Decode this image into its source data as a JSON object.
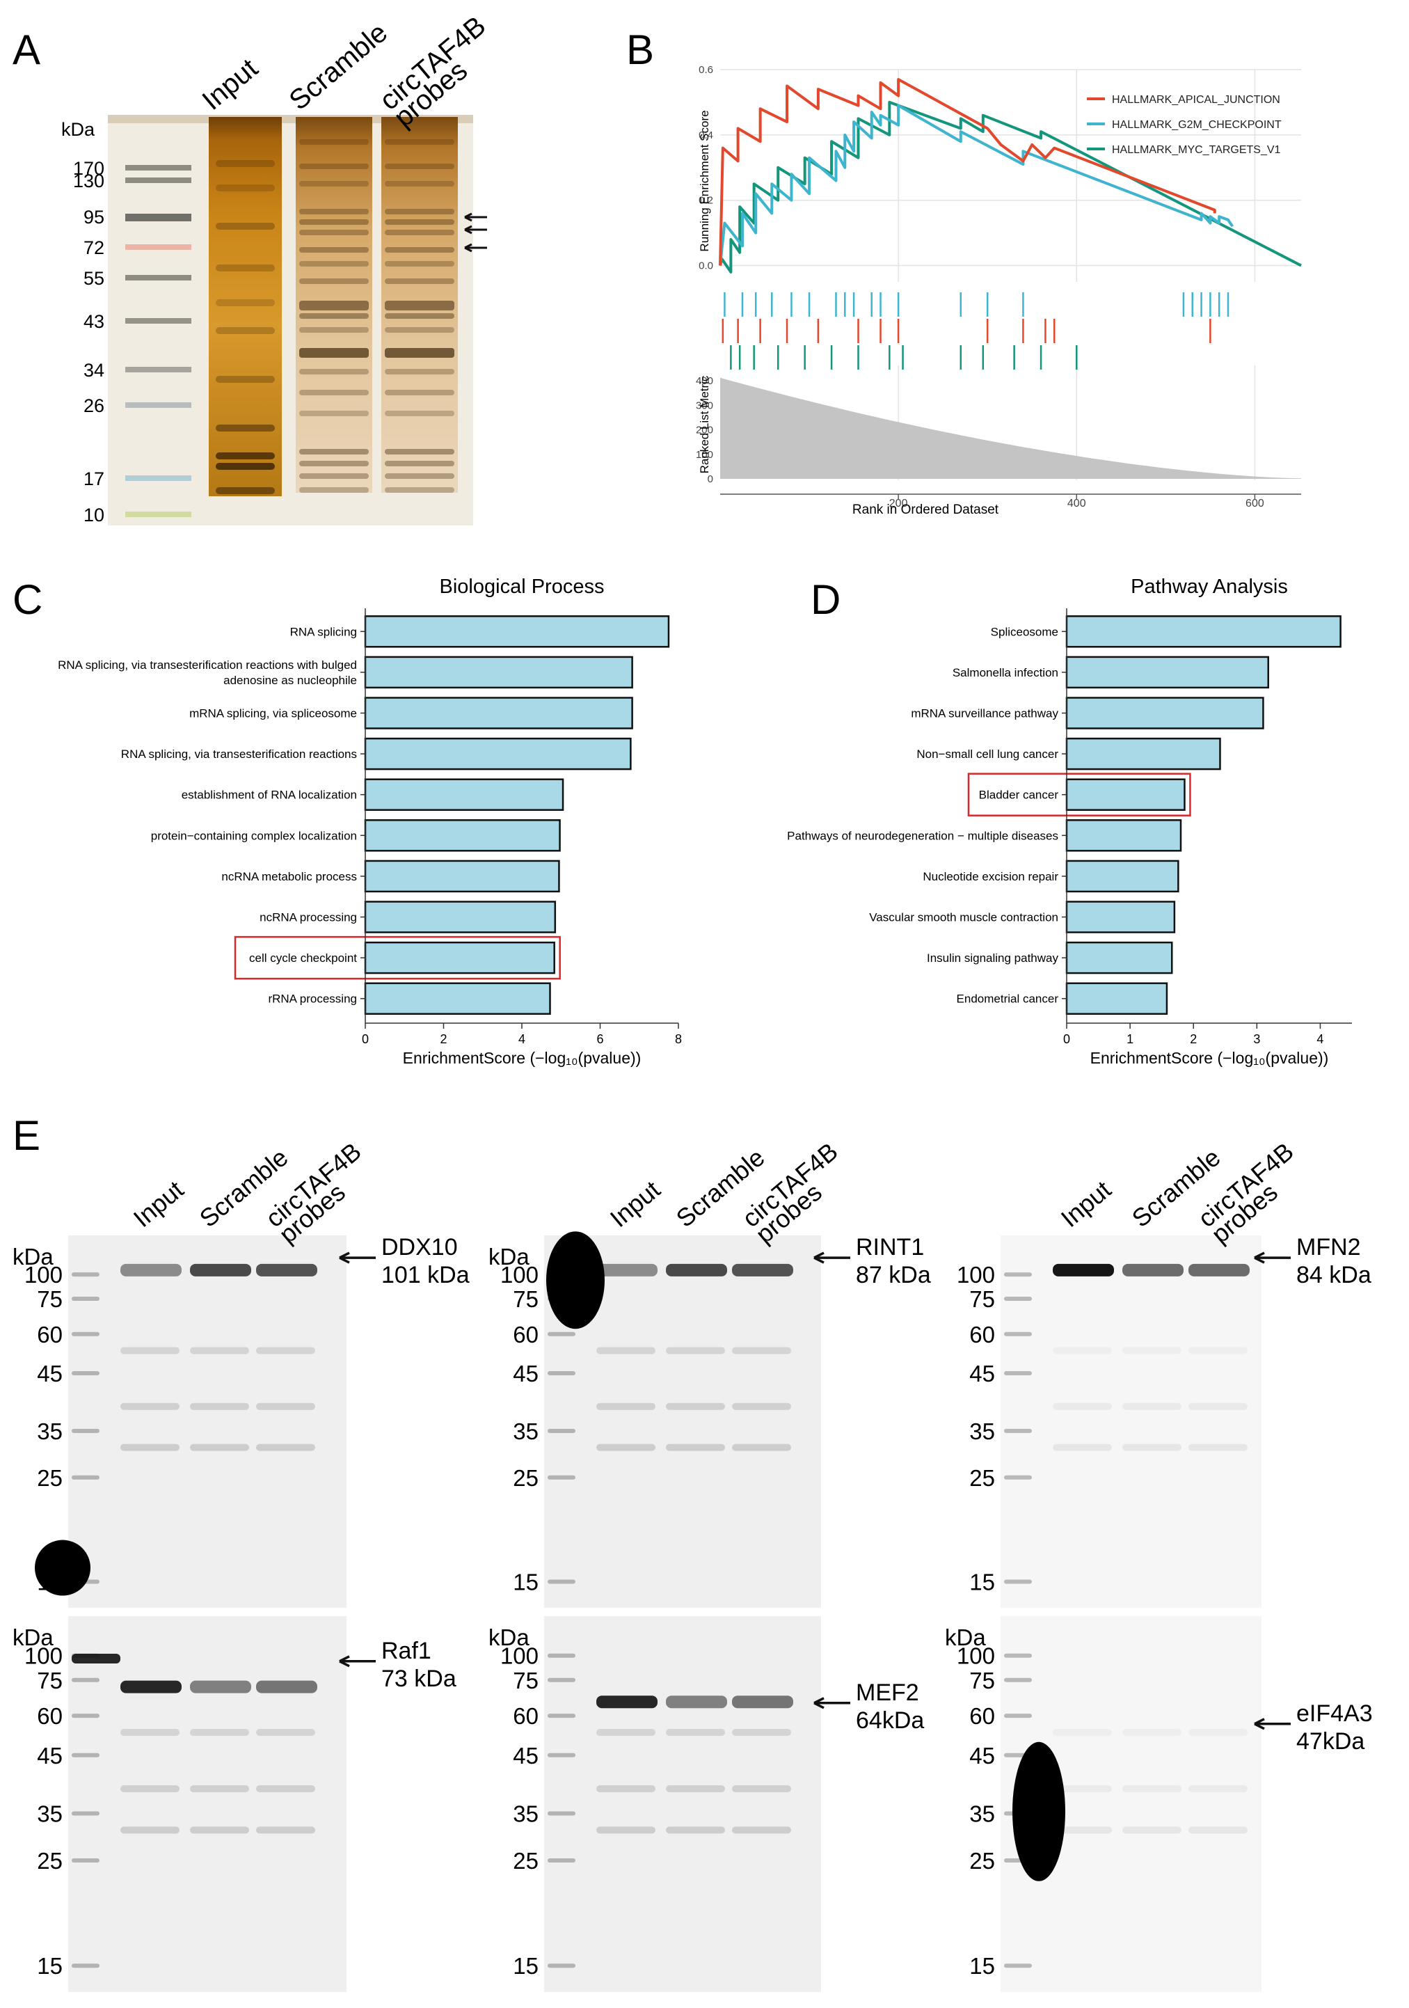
{
  "panels": {
    "A": {
      "letter": "A",
      "unit": "kDa",
      "lanes": [
        "Input",
        "Scramble",
        "circTAF4B\nprobes"
      ],
      "markers": [
        "170",
        "130",
        "95",
        "72",
        "55",
        "43",
        "34",
        "26",
        "17",
        "10"
      ]
    },
    "E": {
      "letter": "E",
      "lanes": [
        "Input",
        "Scramble",
        "circTAF4B\nprobes"
      ],
      "blots": [
        {
          "unit": "kDa",
          "markers": [
            "100",
            "75",
            "60",
            "45",
            "35",
            "25",
            "15"
          ],
          "target": "DDX10",
          "size": "101 kDa"
        },
        {
          "unit": "kDa",
          "markers": [
            "100",
            "75",
            "60",
            "45",
            "35",
            "25",
            "15"
          ],
          "target": "RINT1",
          "size": "87 kDa"
        },
        {
          "unit": "",
          "markers": [
            "100",
            "75",
            "60",
            "45",
            "35",
            "25",
            "15"
          ],
          "target": "MFN2",
          "size": "84 kDa"
        },
        {
          "unit": "kDa",
          "markers": [
            "100",
            "75",
            "60",
            "45",
            "35",
            "25",
            "15"
          ],
          "target": "Raf1",
          "size": "73 kDa"
        },
        {
          "unit": "kDa",
          "markers": [
            "100",
            "75",
            "60",
            "45",
            "35",
            "25",
            "15"
          ],
          "target": "MEF2",
          "size": "64kDa"
        },
        {
          "unit": "kDa",
          "markers": [
            "100",
            "75",
            "60",
            "45",
            "35",
            "25",
            "15"
          ],
          "target": "eIF4A3",
          "size": "47kDa"
        }
      ]
    }
  },
  "colors": {
    "apical": "#e2492c",
    "g2m": "#3fb4cf",
    "myc": "#14967c",
    "bar_fill": "#a9d8e6",
    "highlight": "#d8282b",
    "metric_fill": "#c4c4c4"
  },
  "chart_data": [
    {
      "panel": "B",
      "letter": "B",
      "type": "line",
      "title": "",
      "xlabel": "Rank in Ordered Dataset",
      "ylabel": "Running Enrichment Score",
      "ylabel2": "Ranked List Metric",
      "xlim": [
        0,
        652
      ],
      "ylim": [
        -0.05,
        0.6
      ],
      "x_ticks": [
        200,
        400,
        600
      ],
      "y_ticks": [
        0.0,
        0.2,
        0.4,
        0.6
      ],
      "metric_ticks": [
        0,
        100,
        200,
        300,
        400
      ],
      "metric_ylim": [
        0,
        420
      ],
      "legend_position": "top-right",
      "series": [
        {
          "name": "HALLMARK_APICAL_JUNCTION",
          "color": "apical",
          "x": [
            0,
            3,
            20,
            20,
            45,
            45,
            75,
            75,
            110,
            110,
            155,
            155,
            180,
            180,
            200,
            200,
            300,
            315,
            340,
            350,
            365,
            375,
            555,
            555
          ],
          "y": [
            0.0,
            0.36,
            0.32,
            0.42,
            0.38,
            0.48,
            0.44,
            0.55,
            0.48,
            0.54,
            0.49,
            0.52,
            0.48,
            0.56,
            0.52,
            0.57,
            0.42,
            0.37,
            0.32,
            0.37,
            0.33,
            0.36,
            0.17,
            0.16
          ],
          "hits": [
            3,
            20,
            45,
            75,
            110,
            155,
            180,
            200,
            300,
            340,
            365,
            375,
            550
          ]
        },
        {
          "name": "HALLMARK_G2M_CHECKPOINT",
          "color": "g2m",
          "x": [
            0,
            5,
            25,
            25,
            40,
            40,
            58,
            58,
            80,
            80,
            100,
            100,
            130,
            130,
            140,
            140,
            150,
            150,
            170,
            170,
            180,
            180,
            200,
            200,
            270,
            270,
            340,
            340,
            540,
            540,
            550,
            550,
            560,
            560,
            570,
            575
          ],
          "y": [
            0.0,
            0.13,
            0.06,
            0.16,
            0.1,
            0.22,
            0.16,
            0.25,
            0.2,
            0.28,
            0.22,
            0.33,
            0.26,
            0.35,
            0.3,
            0.4,
            0.35,
            0.44,
            0.39,
            0.47,
            0.43,
            0.46,
            0.43,
            0.49,
            0.38,
            0.41,
            0.31,
            0.35,
            0.14,
            0.16,
            0.13,
            0.15,
            0.13,
            0.15,
            0.14,
            0.12
          ],
          "hits": [
            5,
            25,
            40,
            58,
            80,
            100,
            130,
            140,
            150,
            170,
            180,
            200,
            270,
            300,
            340,
            520,
            530,
            540,
            550,
            560,
            570
          ]
        },
        {
          "name": "HALLMARK_MYC_TARGETS_V1",
          "color": "myc",
          "x": [
            0,
            2,
            12,
            12,
            22,
            22,
            38,
            38,
            65,
            65,
            95,
            95,
            125,
            125,
            155,
            155,
            190,
            190,
            270,
            270,
            295,
            295,
            360,
            360,
            652
          ],
          "y": [
            0.0,
            0.02,
            -0.02,
            0.08,
            0.04,
            0.18,
            0.13,
            0.25,
            0.2,
            0.3,
            0.25,
            0.33,
            0.28,
            0.38,
            0.33,
            0.45,
            0.4,
            0.5,
            0.42,
            0.45,
            0.41,
            0.46,
            0.39,
            0.41,
            0.0
          ],
          "hits": [
            12,
            22,
            38,
            65,
            95,
            125,
            155,
            190,
            205,
            270,
            295,
            330,
            360,
            400
          ]
        }
      ]
    },
    {
      "panel": "C",
      "letter": "C",
      "type": "bar",
      "orientation": "horizontal",
      "title": "Biological Process",
      "xlabel": "EnrichmentScore (−log₁₀(pvalue))",
      "xlim": [
        0,
        8
      ],
      "x_ticks": [
        0,
        2,
        4,
        6,
        8
      ],
      "categories": [
        "RNA splicing",
        "RNA splicing, via transesterification reactions with bulged\nadenosine as nucleophile",
        "mRNA splicing, via spliceosome",
        "RNA splicing, via transesterification reactions",
        "establishment of RNA localization",
        "protein−containing complex localization",
        "ncRNA metabolic process",
        "ncRNA processing",
        "cell cycle checkpoint",
        "rRNA processing"
      ],
      "values": [
        7.75,
        6.82,
        6.82,
        6.78,
        5.05,
        4.97,
        4.95,
        4.85,
        4.83,
        4.72
      ],
      "highlighted": "cell cycle checkpoint"
    },
    {
      "panel": "D",
      "letter": "D",
      "type": "bar",
      "orientation": "horizontal",
      "title": "Pathway Analysis",
      "xlabel": "EnrichmentScore (−log₁₀(pvalue))",
      "xlim": [
        0,
        4.5
      ],
      "x_ticks": [
        0,
        1,
        2,
        3,
        4
      ],
      "categories": [
        "Spliceosome",
        "Salmonella infection",
        "mRNA surveillance pathway",
        "Non−small cell lung cancer",
        "Bladder cancer",
        "Pathways of neurodegeneration − multiple diseases",
        "Nucleotide excision repair",
        "Vascular smooth muscle contraction",
        "Insulin signaling pathway",
        "Endometrial cancer"
      ],
      "values": [
        4.32,
        3.18,
        3.1,
        2.42,
        1.86,
        1.8,
        1.76,
        1.7,
        1.66,
        1.58
      ],
      "highlighted": "Bladder cancer"
    }
  ]
}
